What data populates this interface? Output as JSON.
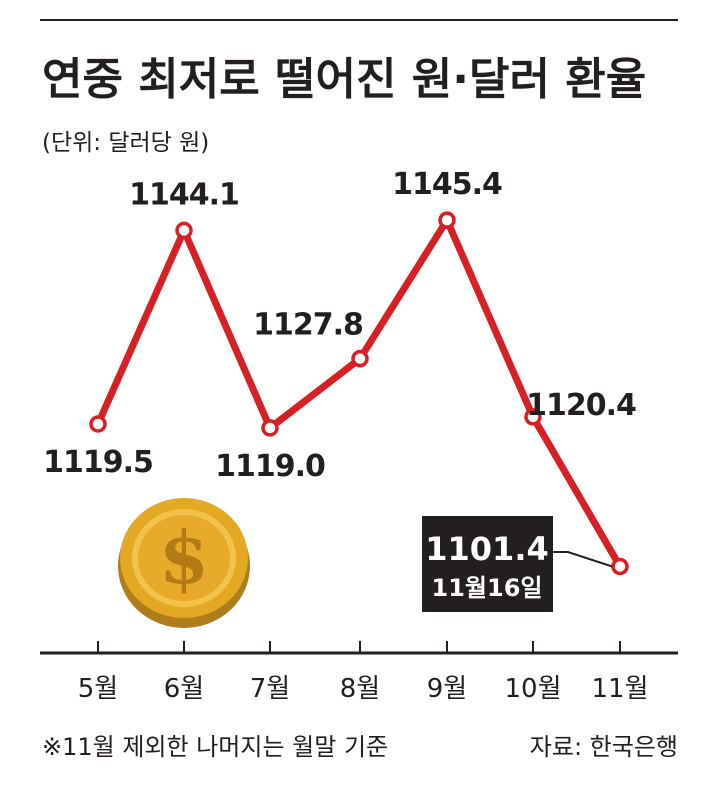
{
  "title": "연중 최저로 떨어진 원·달러 환율",
  "subtitle": "(단위: 달러당 원)",
  "chart_data": {
    "type": "line",
    "categories": [
      "5월",
      "6월",
      "7월",
      "8월",
      "9월",
      "10월",
      "11월"
    ],
    "values": [
      1119.5,
      1144.1,
      1119.0,
      1127.8,
      1145.4,
      1120.4,
      1101.4
    ],
    "value_labels": [
      "1119.5",
      "1144.1",
      "1119.0",
      "1127.8",
      "1145.4",
      "1120.4",
      "1101.4"
    ],
    "highlight": {
      "index": 6,
      "value": "1101.4",
      "date": "11월16일"
    },
    "line_color": "#d71f26"
  },
  "footnote": "※11월 제외한 나머지는 월말 기준",
  "source": "자료: 한국은행"
}
